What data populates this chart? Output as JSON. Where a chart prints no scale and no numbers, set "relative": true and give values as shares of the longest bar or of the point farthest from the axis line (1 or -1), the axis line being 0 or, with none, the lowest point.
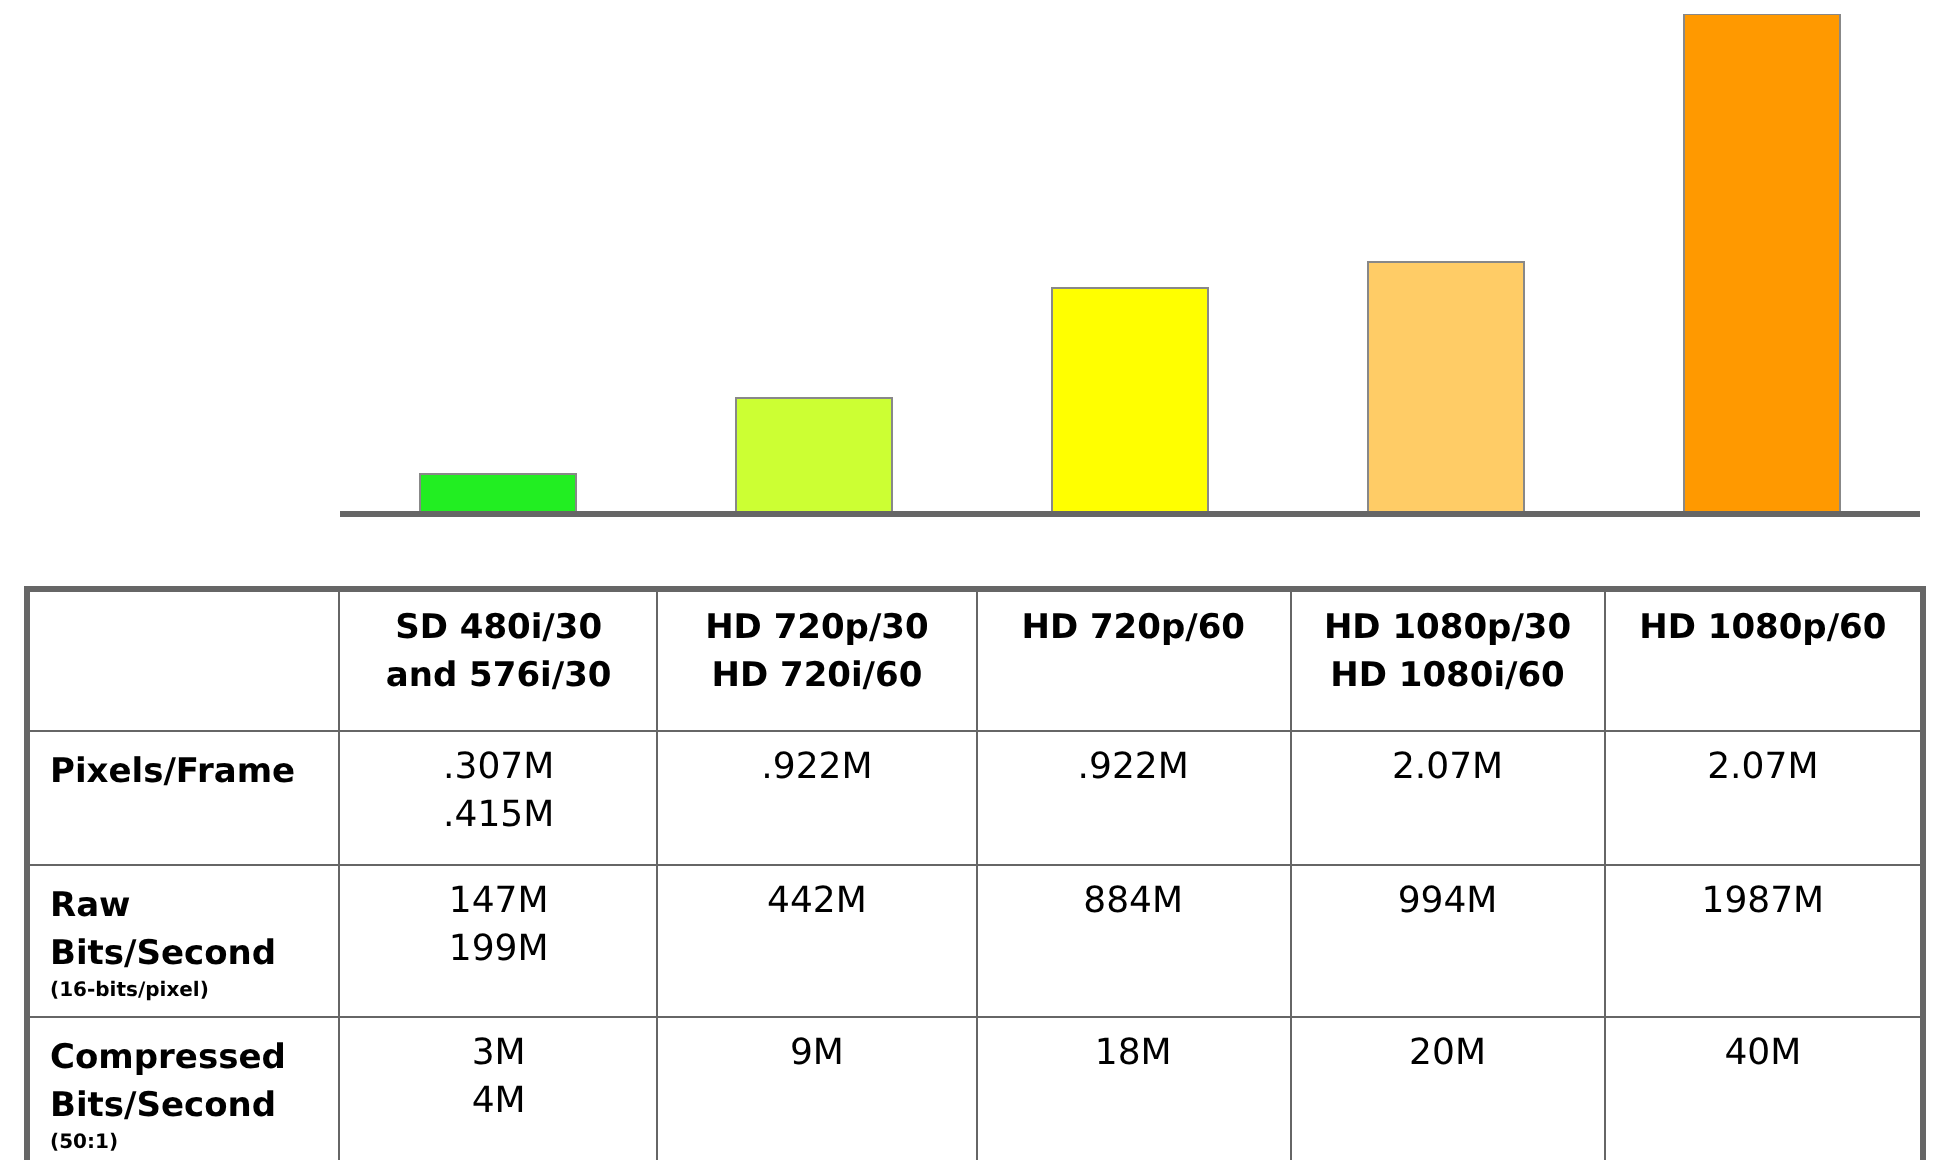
{
  "chart_data": {
    "type": "bar",
    "categories": [
      "SD 480i/30\nand 576i/30",
      "HD 720p/30\nHD 720i/60",
      "HD 720p/60",
      "HD 1080p/30\nHD 1080i/60",
      "HD 1080p/60"
    ],
    "values": [
      0.08,
      0.232,
      0.452,
      0.504,
      1
    ],
    "colors": [
      "#22ee22",
      "#ccff33",
      "#ffff00",
      "#ffcc66",
      "#ff9900"
    ],
    "relative": true,
    "annotations": [
      "Pixels/Frame",
      ".307M\n.415M",
      ".922M",
      ".922M",
      "2.07M",
      "2.07M",
      "Raw\nBits/Second\n(16-bits/pixel)",
      "147M\n199M",
      "442M",
      "884M",
      "994M",
      "1987M",
      "Compressed\nBits/Second\n(50:1)",
      "3M\n4M",
      "9M",
      "18M",
      "20M",
      "40M"
    ]
  }
}
